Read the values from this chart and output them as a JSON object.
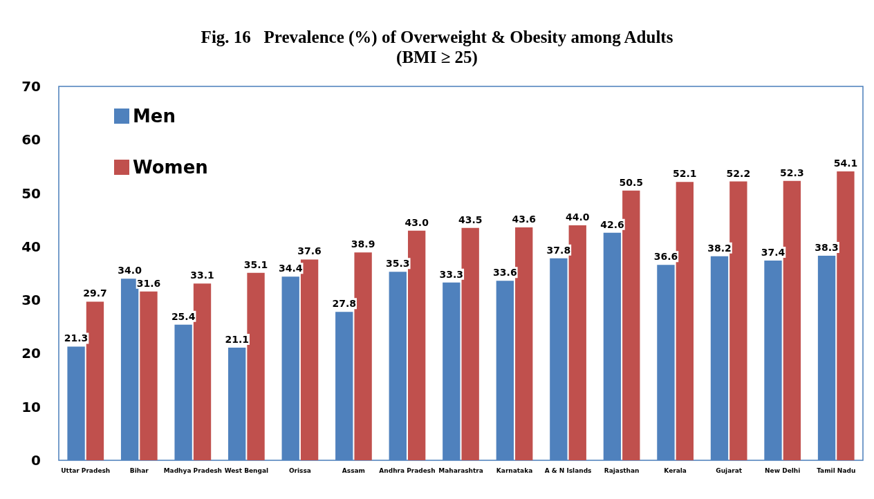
{
  "chart_data": {
    "type": "bar",
    "title": "Fig. 16   Prevalence (%) of Overweight & Obesity among Adults",
    "subtitle": "(BMI ≥ 25)",
    "categories": [
      "Uttar Pradesh",
      "Bihar",
      "Madhya Pradesh",
      "West Bengal",
      "Orissa",
      "Assam",
      "Andhra Pradesh",
      "Maharashtra",
      "Karnataka",
      "A & N Islands",
      "Rajasthan",
      "Kerala",
      "Gujarat",
      "New Delhi",
      "Tamil Nadu"
    ],
    "series": [
      {
        "name": "Men",
        "color": "#4f81bd",
        "values": [
          21.3,
          34.0,
          25.4,
          21.1,
          34.4,
          27.8,
          35.3,
          33.3,
          33.6,
          37.8,
          42.6,
          36.6,
          38.2,
          37.4,
          38.3
        ],
        "value_labels": [
          "21.3",
          "34.0",
          "25.4",
          "21.1",
          "34.4",
          "27.8",
          "35.3",
          "33.3",
          "33.6",
          "37.8",
          "42.6",
          "36.6",
          "38.2",
          "37.4",
          "38.3"
        ]
      },
      {
        "name": "Women",
        "color": "#c0504d",
        "values": [
          29.7,
          31.6,
          33.1,
          35.1,
          37.6,
          38.9,
          43.0,
          43.5,
          43.6,
          44.0,
          50.5,
          52.1,
          52.2,
          52.3,
          54.1
        ],
        "value_labels": [
          "29.7",
          "31.6",
          "33.1",
          "35.1",
          "37.6",
          "38.9",
          "43.0",
          "43.5",
          "43.6",
          "44.0",
          "50.5",
          "52.1",
          "52.2",
          "52.3",
          "54.1"
        ]
      }
    ],
    "ylim": [
      0,
      70
    ],
    "yticks": [
      0,
      10,
      20,
      30,
      40,
      50,
      60,
      70
    ],
    "grid": false,
    "legend": "top left"
  }
}
